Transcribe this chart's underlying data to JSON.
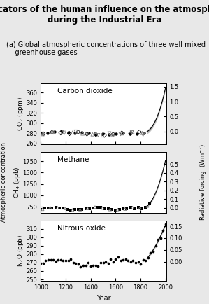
{
  "title": "Indicators of the human influence on the atmosphere\nduring the Industrial Era",
  "subtitle": "(a) Global atmospheric concentrations of three well mixed\n    greenhouse gases",
  "title_fontsize": 8.5,
  "subtitle_fontsize": 7,
  "co2_label": "Carbon dioxide",
  "co2_ylabel_left": "CO$_2$ (ppm)",
  "co2_ylim": [
    258,
    378
  ],
  "co2_yticks": [
    260,
    280,
    300,
    320,
    340,
    360
  ],
  "co2_rf_yticks": [
    0.0,
    0.5,
    1.0,
    1.5
  ],
  "ch4_label": "Methane",
  "ch4_ylabel_left": "CH$_4$ (ppb)",
  "ch4_ylim": [
    620,
    1950
  ],
  "ch4_yticks": [
    750,
    1000,
    1250,
    1500,
    1750
  ],
  "ch4_rf_yticks": [
    0.0,
    0.1,
    0.2,
    0.3,
    0.4,
    0.5
  ],
  "n2o_label": "Nitrous oxide",
  "n2o_ylabel_left": "N$_2$O (ppb)",
  "n2o_ylim": [
    248,
    320
  ],
  "n2o_yticks": [
    250,
    260,
    270,
    280,
    290,
    300,
    310
  ],
  "n2o_rf_yticks": [
    0.0,
    0.05,
    0.1,
    0.15
  ],
  "rf_ylabel": "Radiative forcing  (Wm$^{-2}$)",
  "atm_conc_label": "Atmospheric concentration",
  "xlabel": "Year",
  "xlim": [
    1000,
    2005
  ],
  "xticks": [
    1000,
    1200,
    1400,
    1600,
    1800,
    2000
  ],
  "bg_color": "#e8e8e8",
  "plot_bg": "#ffffff"
}
